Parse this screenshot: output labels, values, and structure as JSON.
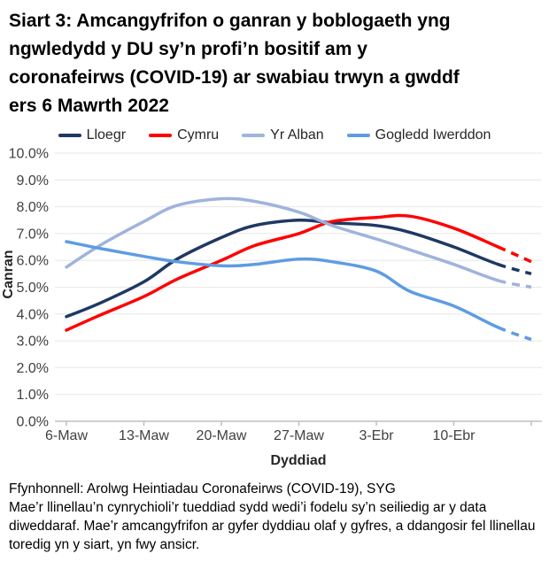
{
  "chart_data": {
    "type": "line",
    "title": "Siart 3: Amcangyfrifon o ganran y boblogaeth yng ngwledydd y DU sy’n profi’n bositif am y coronafeirws (COVID-19) ar swabiau trwyn a gwddf ers 6 Mawrth 2022",
    "xlabel": "Dyddiad",
    "ylabel": "Canran",
    "ylim": [
      0,
      10
    ],
    "ytick_labels": [
      "0.0%",
      "1.0%",
      "2.0%",
      "3.0%",
      "4.0%",
      "5.0%",
      "6.0%",
      "7.0%",
      "8.0%",
      "9.0%",
      "10.0%"
    ],
    "xticks": [
      {
        "day": 0,
        "label": "6-Maw"
      },
      {
        "day": 7,
        "label": "13-Maw"
      },
      {
        "day": 14,
        "label": "20-Maw"
      },
      {
        "day": 21,
        "label": "27-Maw"
      },
      {
        "day": 28,
        "label": "3-Ebr"
      },
      {
        "day": 35,
        "label": "10-Ebr"
      },
      {
        "day": 42,
        "label": ""
      }
    ],
    "x_days": [
      0,
      3,
      7,
      10,
      14,
      17,
      21,
      24,
      28,
      31,
      35,
      39,
      42
    ],
    "dashed_from_index": 11,
    "grid_color": "#E7E7E7",
    "axis_color": "#BFBFBF",
    "tick_text_color": "#404040",
    "series": [
      {
        "name": "Lloegr",
        "color": "#1F3864",
        "values": [
          3.9,
          4.4,
          5.2,
          6.05,
          6.85,
          7.3,
          7.5,
          7.4,
          7.3,
          7.05,
          6.5,
          5.85,
          5.5
        ]
      },
      {
        "name": "Cymru",
        "color": "#FF0000",
        "values": [
          3.4,
          3.95,
          4.65,
          5.3,
          6.0,
          6.55,
          7.0,
          7.45,
          7.6,
          7.65,
          7.2,
          6.5,
          5.95
        ]
      },
      {
        "name": "Yr Alban",
        "color": "#9FB3DC",
        "values": [
          5.75,
          6.55,
          7.45,
          8.05,
          8.3,
          8.2,
          7.8,
          7.3,
          6.8,
          6.4,
          5.85,
          5.25,
          5.0
        ]
      },
      {
        "name": "Gogledd Iwerddon",
        "color": "#5E9CE2",
        "values": [
          6.7,
          6.45,
          6.15,
          5.95,
          5.8,
          5.85,
          6.05,
          5.95,
          5.6,
          4.85,
          4.3,
          3.5,
          3.05
        ]
      }
    ]
  },
  "footer": {
    "source": "Ffynhonnell: Arolwg Heintiadau Coronafeirws (COVID-19), SYG",
    "note": "Mae’r llinellau’n cynrychioli’r tueddiad sydd wedi’i fodelu sy’n seiliedig ar y data diweddaraf. Mae’r amcangyfrifon ar gyfer dyddiau olaf y gyfres, a ddangosir fel llinellau toredig yn y siart, yn fwy ansicr."
  }
}
